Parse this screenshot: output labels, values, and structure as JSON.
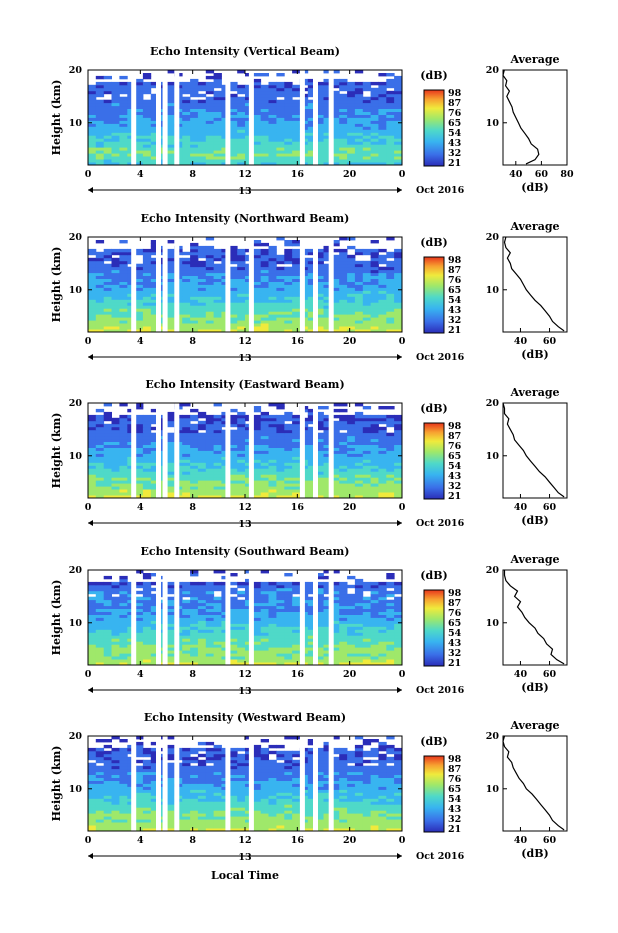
{
  "xlabel": "Local Time",
  "time_ticks": [
    "0",
    "4",
    "8",
    "12",
    "16",
    "20",
    "0"
  ],
  "date_tag": "13",
  "month_tag": "Oct 2016",
  "ylabel": "Height (km)",
  "height_ticks": [
    "20",
    "10"
  ],
  "colorbar": {
    "unit": "(dB)",
    "ticks": [
      "98",
      "87",
      "76",
      "65",
      "54",
      "43",
      "32",
      "21"
    ],
    "colors": [
      "#2b2db8",
      "#3a6fe8",
      "#38b4f0",
      "#4fd9c8",
      "#9fe86a",
      "#f0ea3c",
      "#f7a030",
      "#e8361c"
    ]
  },
  "average": {
    "title": "Average",
    "unit": "(dB)"
  },
  "chart_data": [
    {
      "type": "heatmap",
      "title": "Echo Intensity (Vertical Beam)",
      "xlabel": "Local Time",
      "ylabel": "Height (km)",
      "xlim": [
        0,
        24
      ],
      "ylim": [
        2,
        20
      ],
      "zlim": [
        21,
        98
      ],
      "profile_ticks": [
        "40",
        "60",
        "80"
      ],
      "profile_xlim": [
        30,
        80
      ],
      "profile": [
        [
          48,
          2.2
        ],
        [
          55,
          3
        ],
        [
          58,
          4
        ],
        [
          57,
          5
        ],
        [
          52,
          6
        ],
        [
          50,
          7
        ],
        [
          47,
          8
        ],
        [
          44,
          9
        ],
        [
          42,
          10
        ],
        [
          40,
          11
        ],
        [
          38,
          12
        ],
        [
          37,
          13
        ],
        [
          35,
          14
        ],
        [
          33,
          15
        ],
        [
          35,
          16
        ],
        [
          32,
          17
        ],
        [
          33,
          18
        ],
        [
          30,
          19
        ],
        [
          31,
          20
        ]
      ],
      "missing_hours": [
        3.3,
        5.2,
        5.7,
        6.6,
        10.5,
        12.3,
        16.2,
        17.2,
        18.4
      ]
    },
    {
      "type": "heatmap",
      "title": "Echo Intensity (Northward Beam)",
      "xlabel": "Local Time",
      "ylabel": "Height (km)",
      "xlim": [
        0,
        24
      ],
      "ylim": [
        2,
        20
      ],
      "zlim": [
        21,
        98
      ],
      "profile_ticks": [
        "40",
        "60"
      ],
      "profile_xlim": [
        28,
        72
      ],
      "profile": [
        [
          70,
          2.2
        ],
        [
          66,
          3
        ],
        [
          62,
          4
        ],
        [
          60,
          5
        ],
        [
          57,
          6
        ],
        [
          54,
          7
        ],
        [
          50,
          8
        ],
        [
          47,
          9
        ],
        [
          44,
          10
        ],
        [
          42,
          11
        ],
        [
          40,
          12
        ],
        [
          37,
          13
        ],
        [
          34,
          14
        ],
        [
          33,
          15
        ],
        [
          31,
          16
        ],
        [
          33,
          17
        ],
        [
          30,
          18
        ],
        [
          29,
          19
        ],
        [
          30,
          20
        ]
      ],
      "missing_hours": [
        3.3,
        5.2,
        5.7,
        6.6,
        10.5,
        12.3,
        16.2,
        17.2,
        18.4
      ]
    },
    {
      "type": "heatmap",
      "title": "Echo Intensity (Eastward Beam)",
      "xlabel": "Local Time",
      "ylabel": "Height (km)",
      "xlim": [
        0,
        24
      ],
      "ylim": [
        2,
        20
      ],
      "zlim": [
        21,
        98
      ],
      "profile_ticks": [
        "40",
        "60"
      ],
      "profile_xlim": [
        28,
        72
      ],
      "profile": [
        [
          70,
          2.2
        ],
        [
          66,
          3
        ],
        [
          63,
          4
        ],
        [
          60,
          5
        ],
        [
          57,
          6
        ],
        [
          53,
          7
        ],
        [
          50,
          8
        ],
        [
          47,
          9
        ],
        [
          44,
          10
        ],
        [
          42,
          11
        ],
        [
          39,
          12
        ],
        [
          36,
          13
        ],
        [
          35,
          14
        ],
        [
          33,
          15
        ],
        [
          31,
          16
        ],
        [
          32,
          17
        ],
        [
          29,
          18
        ],
        [
          29,
          19
        ],
        [
          28,
          20
        ]
      ],
      "missing_hours": [
        3.3,
        5.2,
        5.7,
        6.6,
        10.5,
        12.3,
        16.2,
        17.2,
        18.4
      ]
    },
    {
      "type": "heatmap",
      "title": "Echo Intensity (Southward Beam)",
      "xlabel": "Local Time",
      "ylabel": "Height (km)",
      "xlim": [
        0,
        24
      ],
      "ylim": [
        2,
        20
      ],
      "zlim": [
        21,
        98
      ],
      "profile_ticks": [
        "40",
        "60"
      ],
      "profile_xlim": [
        28,
        72
      ],
      "profile": [
        [
          70,
          2.2
        ],
        [
          65,
          3
        ],
        [
          61,
          4
        ],
        [
          62,
          5
        ],
        [
          58,
          6
        ],
        [
          56,
          7
        ],
        [
          52,
          8
        ],
        [
          50,
          9
        ],
        [
          46,
          10
        ],
        [
          43,
          11
        ],
        [
          41,
          12
        ],
        [
          38,
          13
        ],
        [
          40,
          14
        ],
        [
          36,
          15
        ],
        [
          38,
          16
        ],
        [
          33,
          17
        ],
        [
          30,
          18
        ],
        [
          29,
          19
        ],
        [
          29,
          20
        ]
      ],
      "missing_hours": [
        3.3,
        5.2,
        5.7,
        6.6,
        10.5,
        12.3,
        16.2,
        17.2,
        18.4
      ]
    },
    {
      "type": "heatmap",
      "title": "Echo Intensity (Westward Beam)",
      "xlabel": "Local Time",
      "ylabel": "Height (km)",
      "xlim": [
        0,
        24
      ],
      "ylim": [
        2,
        20
      ],
      "zlim": [
        21,
        98
      ],
      "profile_ticks": [
        "40",
        "60"
      ],
      "profile_xlim": [
        28,
        72
      ],
      "profile": [
        [
          70,
          2.2
        ],
        [
          66,
          3
        ],
        [
          62,
          4
        ],
        [
          60,
          5
        ],
        [
          57,
          6
        ],
        [
          54,
          7
        ],
        [
          51,
          8
        ],
        [
          48,
          9
        ],
        [
          44,
          10
        ],
        [
          42,
          11
        ],
        [
          39,
          12
        ],
        [
          37,
          13
        ],
        [
          35,
          14
        ],
        [
          34,
          15
        ],
        [
          31,
          16
        ],
        [
          32,
          17
        ],
        [
          29,
          18
        ],
        [
          28,
          19
        ],
        [
          29,
          20
        ]
      ],
      "missing_hours": [
        3.3,
        5.2,
        5.7,
        6.6,
        10.5,
        12.3,
        16.2,
        17.2,
        18.4
      ]
    }
  ]
}
